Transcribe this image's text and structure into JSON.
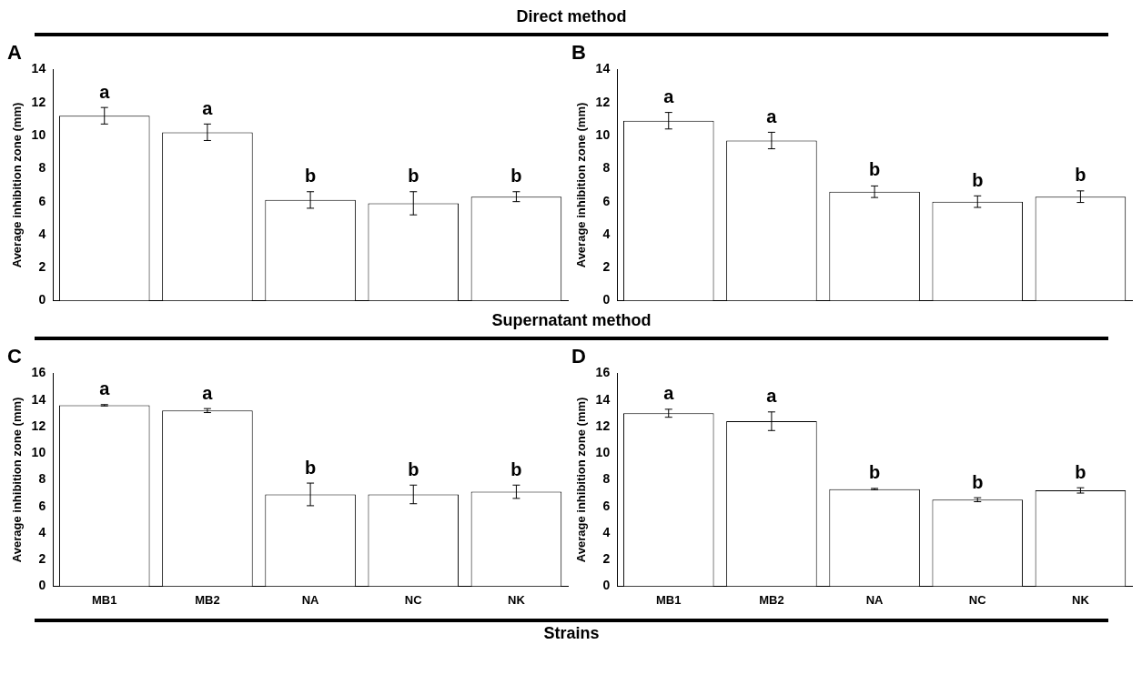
{
  "chart_data": [
    {
      "type": "bar",
      "title": "A",
      "subtitle": "Direct method",
      "categories": [
        "MB1",
        "MB2",
        "NA",
        "NC",
        "NK"
      ],
      "values": [
        11.2,
        10.2,
        6.1,
        5.9,
        6.3
      ],
      "errors": [
        0.5,
        0.5,
        0.5,
        0.7,
        0.3
      ],
      "color": "#ffffff",
      "ylabel": "Average inhibition zone (mm)",
      "ylim": [
        0,
        14
      ],
      "yticks": [
        0,
        2,
        4,
        6,
        8,
        10,
        12,
        14
      ],
      "grid": false,
      "legend": false,
      "tick_labels": "y",
      "annotations": [
        {
          "text": "a",
          "x": "MB1",
          "y": 11.7
        },
        {
          "text": "a",
          "x": "MB2",
          "y": 10.7
        },
        {
          "text": "b",
          "x": "NA",
          "y": 6.6
        },
        {
          "text": "b",
          "x": "NC",
          "y": 6.6
        },
        {
          "text": "b",
          "x": "NK",
          "y": 6.6
        }
      ]
    },
    {
      "type": "bar",
      "title": "B",
      "categories": [
        "MB1",
        "MB2",
        "NA",
        "NC",
        "NK"
      ],
      "values": [
        10.9,
        9.7,
        6.6,
        6.0,
        6.3
      ],
      "errors": [
        0.5,
        0.5,
        0.35,
        0.35,
        0.35
      ],
      "color": "#ffffff",
      "ylabel": "Average inhibition zone (mm)",
      "ylim": [
        0,
        14
      ],
      "yticks": [
        0,
        2,
        4,
        6,
        8,
        10,
        12,
        14
      ],
      "grid": false,
      "legend": false,
      "tick_labels": "y",
      "annotations": [
        {
          "text": "a",
          "x": "MB1",
          "y": 11.4
        },
        {
          "text": "a",
          "x": "MB2",
          "y": 10.2
        },
        {
          "text": "b",
          "x": "NA",
          "y": 7.0
        },
        {
          "text": "b",
          "x": "NC",
          "y": 6.35
        },
        {
          "text": "b",
          "x": "NK",
          "y": 6.65
        }
      ]
    },
    {
      "type": "bar",
      "title": "C",
      "subtitle": "Supernatant method",
      "xlabel": "Strains",
      "categories": [
        "MB1",
        "MB2",
        "NA",
        "NC",
        "NK"
      ],
      "values": [
        13.6,
        13.2,
        6.9,
        6.9,
        7.1
      ],
      "errors": [
        0.05,
        0.15,
        0.85,
        0.7,
        0.5
      ],
      "color": "#ffffff",
      "ylabel": "Average inhibition zone (mm)",
      "ylim": [
        0,
        16
      ],
      "yticks": [
        0,
        2,
        4,
        6,
        8,
        10,
        12,
        14,
        16
      ],
      "grid": false,
      "legend": false,
      "annotations": [
        {
          "text": "a",
          "x": "MB1",
          "y": 13.65
        },
        {
          "text": "a",
          "x": "MB2",
          "y": 13.35
        },
        {
          "text": "b",
          "x": "NA",
          "y": 7.75
        },
        {
          "text": "b",
          "x": "NC",
          "y": 7.6
        },
        {
          "text": "b",
          "x": "NK",
          "y": 7.6
        }
      ]
    },
    {
      "type": "bar",
      "title": "D",
      "categories": [
        "MB1",
        "MB2",
        "NA",
        "NC",
        "NK"
      ],
      "values": [
        13.0,
        12.4,
        7.3,
        6.5,
        7.2
      ],
      "errors": [
        0.3,
        0.7,
        0.05,
        0.15,
        0.2
      ],
      "color": "#ffffff",
      "ylabel": "Average inhibition zone (mm)",
      "ylim": [
        0,
        16
      ],
      "yticks": [
        0,
        2,
        4,
        6,
        8,
        10,
        12,
        14,
        16
      ],
      "grid": false,
      "legend": false,
      "annotations": [
        {
          "text": "a",
          "x": "MB1",
          "y": 13.3
        },
        {
          "text": "a",
          "x": "MB2",
          "y": 13.1
        },
        {
          "text": "b",
          "x": "NA",
          "y": 7.35
        },
        {
          "text": "b",
          "x": "NC",
          "y": 6.65
        },
        {
          "text": "b",
          "x": "NK",
          "y": 7.4
        }
      ]
    }
  ]
}
